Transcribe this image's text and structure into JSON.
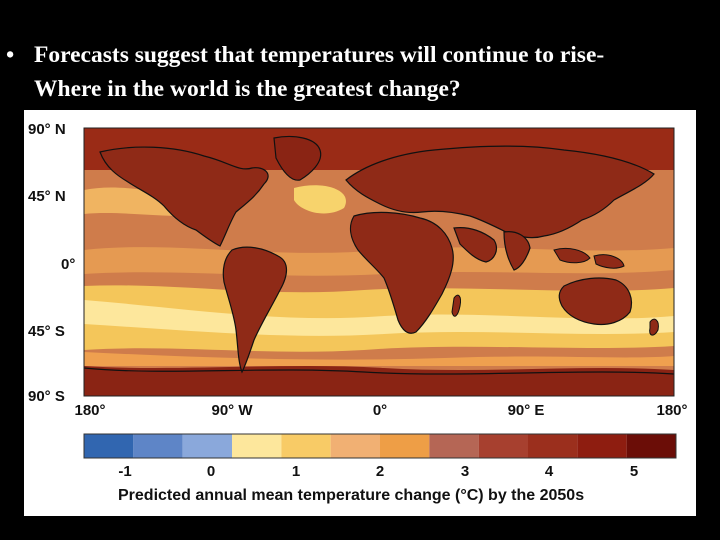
{
  "slide": {
    "bullet": "•",
    "line1": "Forecasts suggest that temperatures will continue to rise-",
    "line2": "Where in the world is the greatest change?"
  },
  "map": {
    "lat_labels": [
      "90° N",
      "45° N",
      "0°",
      "45° S",
      "90° S"
    ],
    "lon_labels": [
      "180°",
      "90° W",
      "0°",
      "90° E",
      "180°"
    ],
    "colors": {
      "background": "#000000",
      "ocean_warm": "#d3804f",
      "band_low": "#f4c65a",
      "band_mid": "#efa04f",
      "land": "#8f2a17",
      "arctic": "#9a2b16",
      "antarctica": "#8a2414",
      "coast": "#111111"
    }
  },
  "legend": {
    "colors": [
      "#3166b0",
      "#5e85c7",
      "#8aa8db",
      "#fde79c",
      "#f8cb66",
      "#f1b073",
      "#ee9e46",
      "#b56655",
      "#a7402f",
      "#9b2f1d",
      "#8e1d10",
      "#6b0d07"
    ],
    "tick_labels": [
      "-1",
      "0",
      "1",
      "2",
      "3",
      "4",
      "5"
    ],
    "title": "Predicted annual mean temperature change (°C) by the 2050s"
  }
}
